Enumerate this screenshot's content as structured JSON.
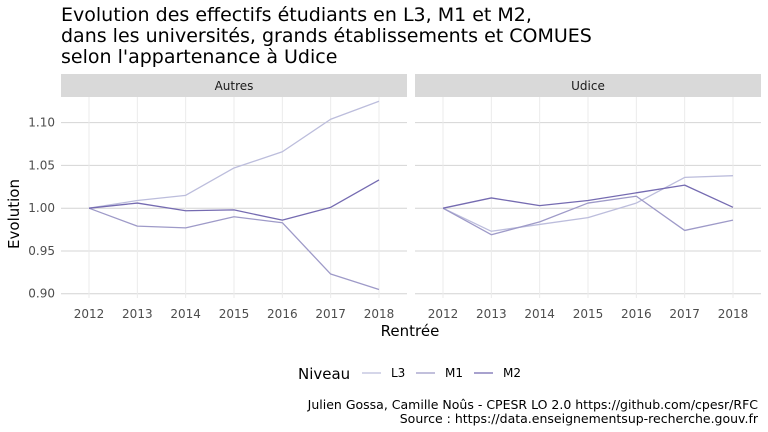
{
  "chart_data": {
    "type": "line",
    "title_lines": [
      "Evolution des effectifs étudiants en L3, M1 et M2,",
      "dans les universités, grands établissements et COMUES",
      "selon l'appartenance à Udice"
    ],
    "xlabel": "Rentrée",
    "ylabel": "Evolution",
    "x": [
      2012,
      2013,
      2014,
      2015,
      2016,
      2017,
      2018
    ],
    "ylim": [
      0.895,
      1.13
    ],
    "yticks": [
      0.9,
      0.95,
      1.0,
      1.05,
      1.1
    ],
    "ytick_labels": [
      "0.90",
      "0.95",
      "1.00",
      "1.05",
      "1.10"
    ],
    "grid": true,
    "legend": {
      "title": "Niveau",
      "position": "bottom",
      "entries": [
        "L3",
        "M1",
        "M2"
      ]
    },
    "series_colors": {
      "L3": "#bcbddc",
      "M1": "#9e9ac8",
      "M2": "#756bb1"
    },
    "facets": [
      {
        "label": "Autres",
        "series": [
          {
            "name": "L3",
            "values": [
              1.0,
              1.009,
              1.015,
              1.047,
              1.066,
              1.104,
              1.125
            ]
          },
          {
            "name": "M1",
            "values": [
              1.0,
              0.979,
              0.977,
              0.99,
              0.983,
              0.923,
              0.905
            ]
          },
          {
            "name": "M2",
            "values": [
              1.0,
              1.006,
              0.997,
              0.998,
              0.986,
              1.001,
              1.033
            ]
          }
        ]
      },
      {
        "label": "Udice",
        "series": [
          {
            "name": "L3",
            "values": [
              1.0,
              0.973,
              0.981,
              0.989,
              1.006,
              1.036,
              1.038
            ]
          },
          {
            "name": "M1",
            "values": [
              1.0,
              0.969,
              0.984,
              1.006,
              1.014,
              0.974,
              0.986
            ]
          },
          {
            "name": "M2",
            "values": [
              1.0,
              1.012,
              1.003,
              1.009,
              1.018,
              1.027,
              1.001
            ]
          }
        ]
      }
    ],
    "caption_lines": [
      "Julien Gossa, Camille Noûs - CPESR LO 2.0 https://github.com/cpesr/RFC",
      "Source : https://data.enseignementsup-recherche.gouv.fr"
    ]
  }
}
